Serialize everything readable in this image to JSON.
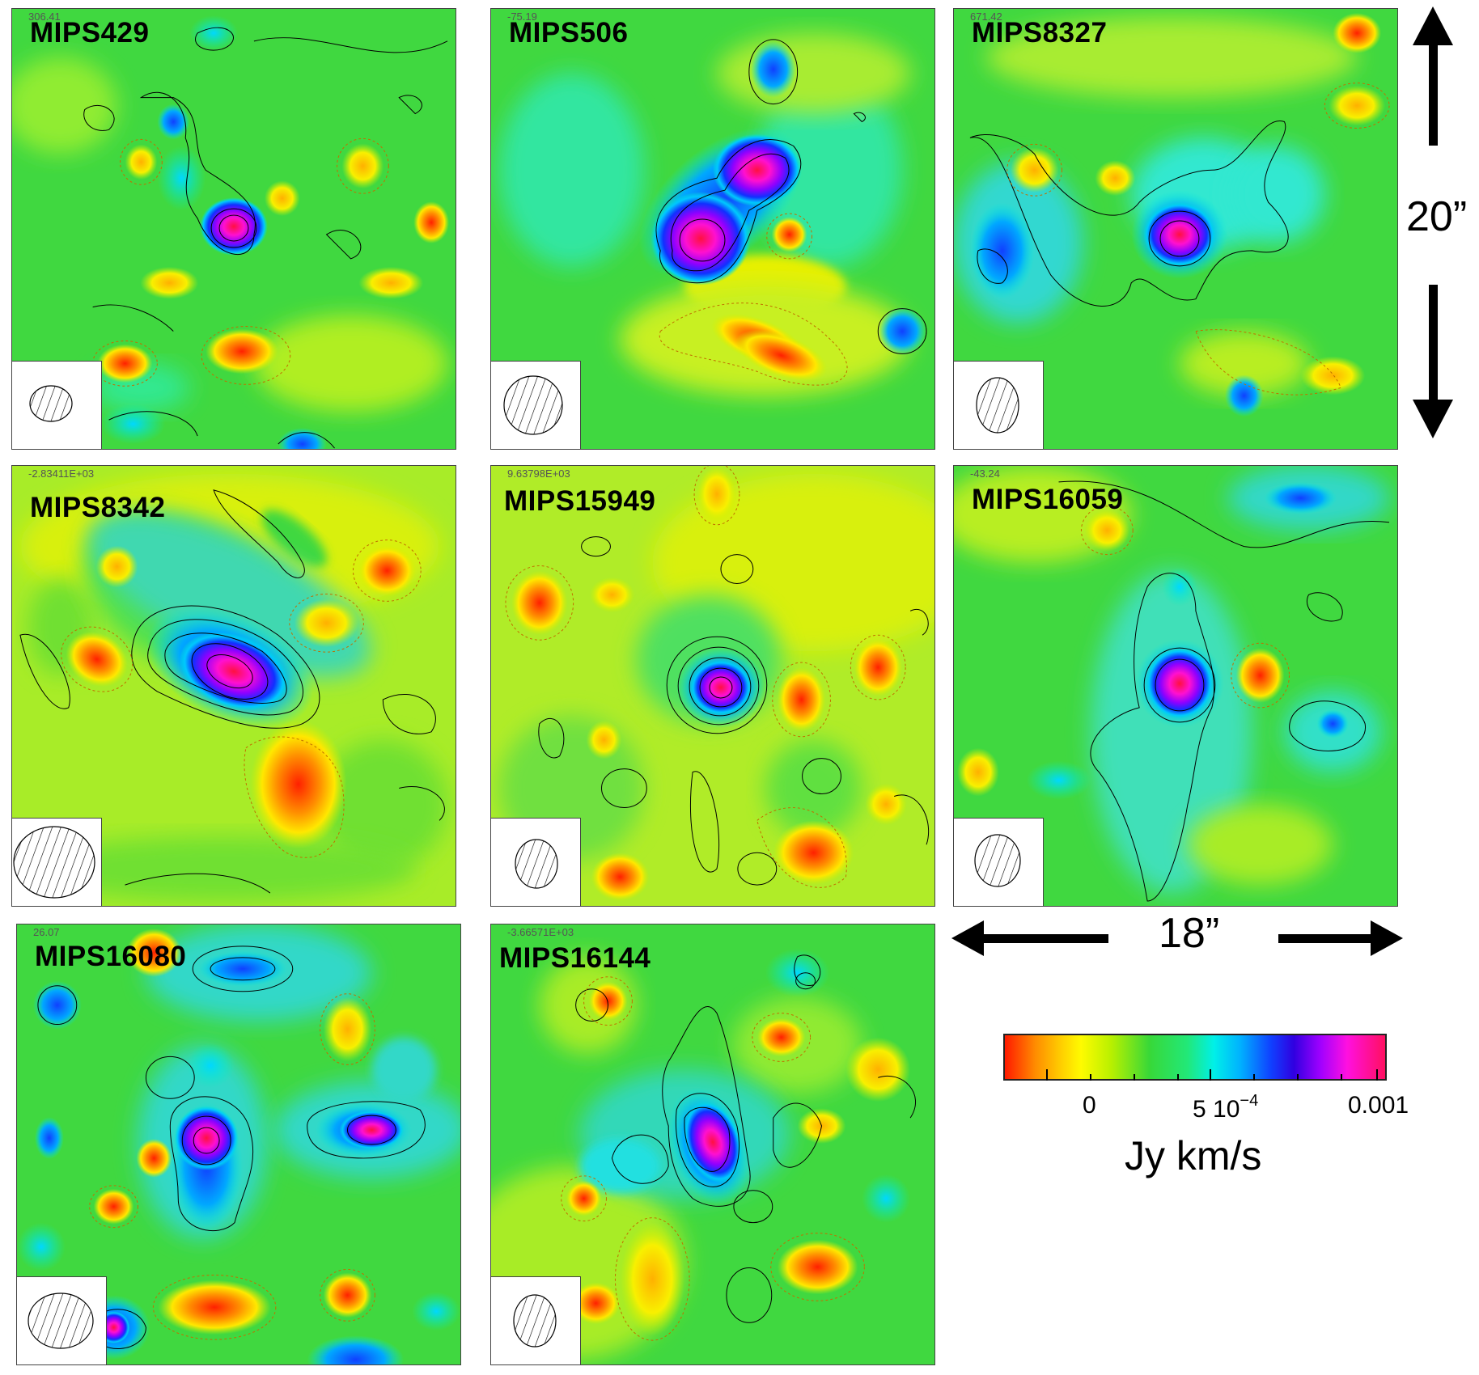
{
  "panels": [
    {
      "name": "MIPS429",
      "corner": "306.41"
    },
    {
      "name": "MIPS506",
      "corner": "-75.19"
    },
    {
      "name": "MIPS8327",
      "corner": "671.42"
    },
    {
      "name": "MIPS8342",
      "corner": "-2.83411E+03"
    },
    {
      "name": "MIPS15949",
      "corner": "9.63798E+03"
    },
    {
      "name": "MIPS16059",
      "corner": "-43.24"
    },
    {
      "name": "MIPS16080",
      "corner": "26.07"
    },
    {
      "name": "MIPS16144",
      "corner": "-3.66571E+03"
    }
  ],
  "scale": {
    "vertical_label": "20”",
    "horizontal_label": "18”"
  },
  "colorbar": {
    "tick_labels": [
      "0",
      "5 10",
      "0.001"
    ],
    "exponent": "−4",
    "unit": "Jy km/s"
  }
}
